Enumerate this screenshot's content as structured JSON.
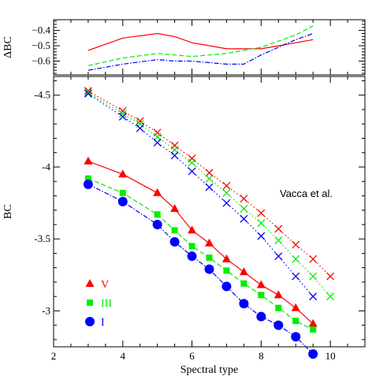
{
  "chart_data": [
    {
      "type": "line",
      "panel": "top",
      "ylabel": "ΔBC",
      "xlim": [
        2,
        11
      ],
      "ylim": [
        -0.69,
        -0.33
      ],
      "yticks": [
        -0.4,
        -0.5,
        -0.6
      ],
      "ytick_labels": [
        "−0.4",
        "−0.5",
        "−0.6"
      ],
      "grid": false,
      "series": [
        {
          "color": "#ff0000",
          "dash": "",
          "x": [
            3,
            4,
            5,
            5.5,
            6,
            7,
            8,
            8.5,
            9,
            9.5
          ],
          "y": [
            -0.53,
            -0.45,
            -0.42,
            -0.44,
            -0.48,
            -0.52,
            -0.52,
            -0.5,
            -0.48,
            -0.46
          ]
        },
        {
          "color": "#00ee00",
          "dash": "6,3",
          "x": [
            3,
            4,
            5,
            5.5,
            6,
            7,
            8,
            8.5,
            9,
            9.5
          ],
          "y": [
            -0.63,
            -0.58,
            -0.55,
            -0.56,
            -0.57,
            -0.55,
            -0.51,
            -0.47,
            -0.43,
            -0.37
          ]
        },
        {
          "color": "#0000ff",
          "dash": "6,2,1.5,2",
          "x": [
            3,
            4,
            5,
            5.5,
            6,
            7,
            7.5,
            8,
            8.5,
            9,
            9.5
          ],
          "y": [
            -0.66,
            -0.62,
            -0.59,
            -0.6,
            -0.6,
            -0.62,
            -0.62,
            -0.56,
            -0.51,
            -0.46,
            -0.42
          ]
        }
      ]
    },
    {
      "type": "scatter",
      "panel": "main",
      "xlabel": "Spectral type",
      "ylabel": "BC",
      "xlim": [
        2,
        11
      ],
      "ylim": [
        -2.75,
        -4.63
      ],
      "xticks": [
        2,
        4,
        6,
        8,
        10
      ],
      "xtick_labels": [
        "2",
        "4",
        "6",
        "8",
        "10"
      ],
      "yticks": [
        -4.5,
        -4,
        -3.5,
        -3
      ],
      "ytick_labels": [
        "-4.5",
        "-4",
        "-3.5",
        "-3"
      ],
      "grid": false,
      "legend_position": "bottom-left",
      "annotation": "Vacca et al.",
      "series": [
        {
          "name": "V",
          "color": "#ff0000",
          "marker": "triangle",
          "dash": "",
          "x": [
            3,
            4,
            5,
            5.5,
            6,
            6.5,
            7,
            7.5,
            8,
            8.5,
            9,
            9.5
          ],
          "y": [
            -4.04,
            -3.95,
            -3.82,
            -3.71,
            -3.56,
            -3.47,
            -3.36,
            -3.27,
            -3.18,
            -3.11,
            -3.02,
            -2.91
          ]
        },
        {
          "name": "III",
          "color": "#00ee00",
          "marker": "square",
          "dash": "6,3",
          "x": [
            3,
            4,
            5,
            5.5,
            6,
            6.5,
            7,
            7.5,
            8,
            8.5,
            9,
            9.5
          ],
          "y": [
            -3.92,
            -3.82,
            -3.67,
            -3.56,
            -3.45,
            -3.37,
            -3.28,
            -3.19,
            -3.11,
            -3.02,
            -2.93,
            -2.87
          ]
        },
        {
          "name": "I",
          "color": "#0000ff",
          "marker": "circle",
          "dash": "6,2,1.5,2",
          "x": [
            3,
            4,
            5,
            5.5,
            6,
            6.5,
            7,
            7.5,
            8,
            8.5,
            9,
            9.5
          ],
          "y": [
            -3.88,
            -3.76,
            -3.6,
            -3.48,
            -3.38,
            -3.29,
            -3.17,
            -3.05,
            -2.96,
            -2.9,
            -2.82,
            -2.7
          ]
        },
        {
          "color": "#ff0000",
          "marker": "x",
          "dash": "1.5,3",
          "x": [
            3,
            4,
            4.5,
            5,
            5.5,
            6,
            6.5,
            7,
            7.5,
            8,
            8.5,
            9,
            9.5,
            10
          ],
          "y": [
            -4.53,
            -4.39,
            -4.32,
            -4.24,
            -4.15,
            -4.06,
            -3.96,
            -3.87,
            -3.78,
            -3.68,
            -3.57,
            -3.46,
            -3.36,
            -3.24
          ]
        },
        {
          "color": "#00ee00",
          "marker": "x",
          "dash": "1.5,3",
          "x": [
            3,
            4,
            4.5,
            5,
            5.5,
            6,
            6.5,
            7,
            7.5,
            8,
            8.5,
            9,
            9.5,
            10
          ],
          "y": [
            -4.52,
            -4.37,
            -4.3,
            -4.21,
            -4.12,
            -4.03,
            -3.92,
            -3.82,
            -3.71,
            -3.61,
            -3.49,
            -3.36,
            -3.24,
            -3.1
          ]
        },
        {
          "color": "#0000ff",
          "marker": "x",
          "dash": "1.5,3",
          "x": [
            3,
            4,
            4.5,
            5,
            5.5,
            6,
            6.5,
            7,
            7.5,
            8,
            8.5,
            9,
            9.5
          ],
          "y": [
            -4.51,
            -4.35,
            -4.27,
            -4.17,
            -4.08,
            -3.97,
            -3.86,
            -3.75,
            -3.64,
            -3.52,
            -3.38,
            -3.24,
            -3.1
          ]
        }
      ]
    }
  ]
}
